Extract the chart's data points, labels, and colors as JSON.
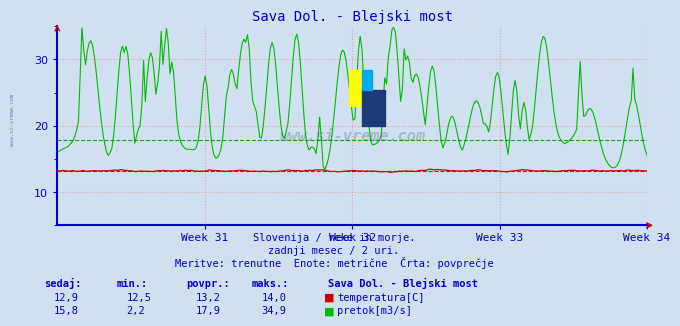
{
  "title": "Sava Dol. - Blejski most",
  "title_color": "#0000cc",
  "bg_color": "#d0e0f0",
  "plot_bg_color": "#d0e0f0",
  "grid_color": "#ee9999",
  "temp_color": "#cc0000",
  "flow_color": "#00bb00",
  "avg_temp_color": "#cc0000",
  "avg_flow_color": "#009900",
  "temp_avg": 13.2,
  "flow_avg": 17.9,
  "temp_min": 12.5,
  "temp_max": 14.0,
  "flow_min": 2.2,
  "flow_max": 34.9,
  "temp_now": 12.9,
  "flow_now": 15.8,
  "ylim_min": 5,
  "ylim_max": 35,
  "yticks": [
    10,
    20,
    30
  ],
  "week_labels": [
    "Week 31",
    "Week 32",
    "Week 33",
    "Week 34"
  ],
  "week_ticks_days": [
    7,
    14,
    21,
    28
  ],
  "n_days": 28,
  "n_points": 336,
  "subtitle1": "Slovenija / reke in morje.",
  "subtitle2": "zadnji mesec / 2 uri.",
  "subtitle3": "Meritve: trenutne  Enote: metrične  Črta: povprečje",
  "footer_station": "Sava Dol. - Blejski most",
  "text_color": "#0000cc",
  "axis_color": "#0000cc",
  "arrow_color": "#cc0000",
  "watermark_color": "#3a5a8a",
  "logo_yellow": "#ffff00",
  "logo_blue_dark": "#1a3a7a",
  "logo_blue_light": "#00aaee"
}
